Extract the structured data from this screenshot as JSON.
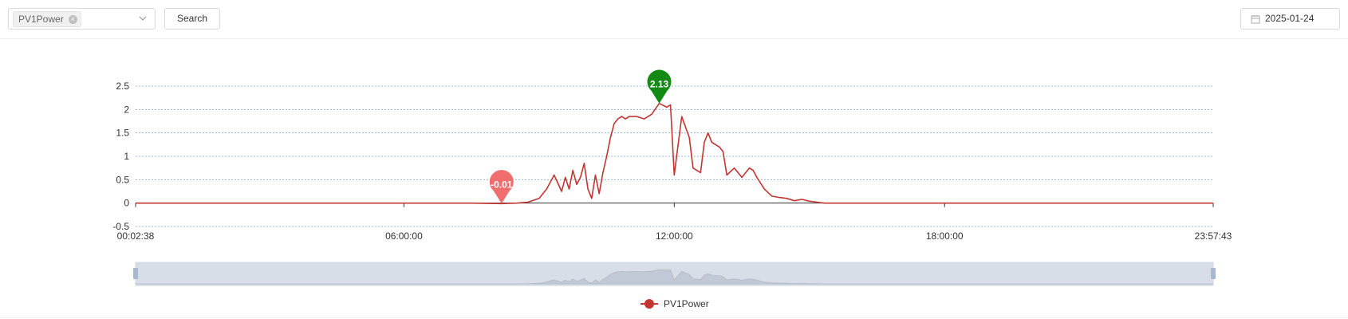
{
  "toolbar": {
    "select_tag": "PV1Power",
    "search_label": "Search",
    "date_value": "2025-01-24"
  },
  "chart_data": {
    "type": "line",
    "x": [
      "00:02:38",
      "01:00:00",
      "02:00:00",
      "03:00:00",
      "04:00:00",
      "05:00:00",
      "06:00:00",
      "07:00:00",
      "07:30:00",
      "08:10:00",
      "08:30:00",
      "08:45:00",
      "09:00:00",
      "09:10:00",
      "09:20:00",
      "09:30:00",
      "09:35:00",
      "09:40:00",
      "09:45:00",
      "09:50:00",
      "09:55:00",
      "10:00:00",
      "10:05:00",
      "10:10:00",
      "10:15:00",
      "10:20:00",
      "10:25:00",
      "10:30:00",
      "10:35:00",
      "10:40:00",
      "10:45:00",
      "10:50:00",
      "10:55:00",
      "11:00:00",
      "11:10:00",
      "11:20:00",
      "11:30:00",
      "11:40:00",
      "11:50:00",
      "11:55:00",
      "12:00:00",
      "12:10:00",
      "12:20:00",
      "12:25:00",
      "12:30:00",
      "12:35:00",
      "12:40:00",
      "12:45:00",
      "12:50:00",
      "13:00:00",
      "13:05:00",
      "13:10:00",
      "13:20:00",
      "13:30:00",
      "13:40:00",
      "13:45:00",
      "13:50:00",
      "14:00:00",
      "14:10:00",
      "14:20:00",
      "14:30:00",
      "14:40:00",
      "14:50:00",
      "15:00:00",
      "15:10:00",
      "15:20:00",
      "15:40:00",
      "16:00:00",
      "16:20:00",
      "16:40:00",
      "17:00:00",
      "18:00:00",
      "20:00:00",
      "22:00:00",
      "23:57:43"
    ],
    "series": [
      {
        "name": "PV1Power",
        "values": [
          0,
          0,
          0,
          0,
          0,
          0,
          0,
          0,
          0,
          -0.01,
          0,
          0.02,
          0.1,
          0.3,
          0.6,
          0.25,
          0.55,
          0.3,
          0.7,
          0.4,
          0.55,
          0.85,
          0.3,
          0.1,
          0.6,
          0.2,
          0.65,
          1.0,
          1.4,
          1.7,
          1.8,
          1.85,
          1.8,
          1.85,
          1.85,
          1.8,
          1.9,
          2.13,
          2.05,
          2.1,
          0.6,
          1.85,
          1.4,
          0.75,
          0.7,
          0.65,
          1.3,
          1.5,
          1.3,
          1.2,
          1.1,
          0.6,
          0.75,
          0.55,
          0.75,
          0.7,
          0.55,
          0.3,
          0.15,
          0.12,
          0.1,
          0.05,
          0.08,
          0.04,
          0.02,
          0,
          0,
          0,
          0,
          0,
          0,
          0,
          0,
          0,
          0
        ]
      }
    ],
    "xaxis_ticks": [
      "00:02:38",
      "06:00:00",
      "12:00:00",
      "18:00:00",
      "23:57:43"
    ],
    "yaxis_ticks": [
      "2.5",
      "2",
      "1.5",
      "1",
      "0.5",
      "0",
      "-0.5"
    ],
    "ylim": [
      -0.5,
      2.5
    ],
    "markers": [
      {
        "label": "2.13",
        "x": "11:40:00",
        "value": 2.13,
        "color": "#138a13"
      },
      {
        "label": "-0.01",
        "x": "08:10:00",
        "value": -0.01,
        "color": "#f06e6e"
      }
    ],
    "legend": {
      "label": "PV1Power",
      "position": "bottom-center"
    },
    "line_color": "#c23531",
    "grid": true
  }
}
